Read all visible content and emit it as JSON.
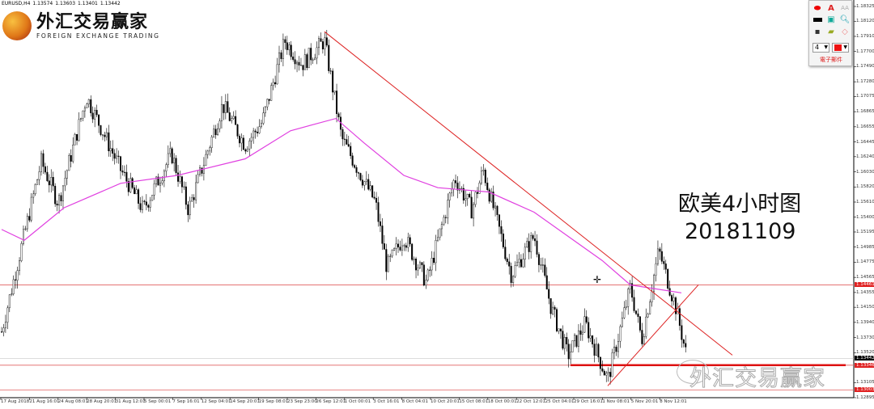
{
  "header": {
    "symbol": "EURUSD,H4",
    "ohlc": [
      "1.13574",
      "1.13603",
      "1.13401",
      "1.13442"
    ]
  },
  "logo": {
    "cn": "外汇交易赢家",
    "en": "FOREIGN EXCHANGE TRADING"
  },
  "toolbox": {
    "line_width": "4",
    "footer": "電子郵件",
    "color": "#ee1111",
    "icons": [
      "ellipse-icon",
      "text-icon",
      "label-icon",
      "rectangle-icon",
      "screenshot-icon",
      "zoom-icon",
      "save-icon",
      "open-folder-icon",
      "eraser-icon"
    ]
  },
  "caption": {
    "line1": "欧美4小时图",
    "line2": "20181109"
  },
  "watermark": "外汇交易赢家",
  "colors": {
    "candles": "#000000",
    "ma": "#e040e0",
    "trendline": "#dd2222",
    "level": "#e06060"
  },
  "chart_data": {
    "type": "candlestick",
    "symbol": "EURUSD",
    "timeframe": "H4",
    "ylim": [
      1.12895,
      1.18325
    ],
    "y_ticks": [
      1.18325,
      1.1812,
      1.1791,
      1.177,
      1.1749,
      1.1728,
      1.17075,
      1.16865,
      1.16655,
      1.16445,
      1.1624,
      1.1603,
      1.1582,
      1.1561,
      1.154,
      1.15195,
      1.14985,
      1.14775,
      1.14565,
      1.14355,
      1.1415,
      1.1394,
      1.1373,
      1.1352,
      1.13105,
      1.12895
    ],
    "highlighted_levels": [
      {
        "value": "1.14461",
        "bg": "#e02020"
      },
      {
        "value": "1.13442",
        "bg": "#000000"
      },
      {
        "value": "1.13346",
        "bg": "#e02020"
      },
      {
        "value": "1.13003",
        "bg": "#e02020"
      }
    ],
    "x_ticks": [
      "17 Aug 2018",
      "21 Aug 16:01",
      "24 Aug 08:01",
      "28 Aug 20:01",
      "31 Aug 12:01",
      "5 Sep 00:01",
      "7 Sep 16:01",
      "12 Sep 04:01",
      "14 Sep 20:01",
      "19 Sep 08:01",
      "23 Sep 23:00",
      "26 Sep 12:01",
      "1 Oct 00:01",
      "3 Oct 16:01",
      "8 Oct 04:01",
      "10 Oct 20:01",
      "15 Oct 08:01",
      "18 Oct 00:01",
      "22 Oct 12:01",
      "25 Oct 04:01",
      "29 Oct 16:01",
      "1 Nov 08:01",
      "5 Nov 20:01",
      "8 Nov 12:01"
    ],
    "price_path": [
      [
        0,
        1.1381
      ],
      [
        4,
        1.1516
      ],
      [
        7,
        1.1617
      ],
      [
        10,
        1.156
      ],
      [
        15,
        1.1707
      ],
      [
        21,
        1.1606
      ],
      [
        25,
        1.155
      ],
      [
        30,
        1.1628
      ],
      [
        33,
        1.155
      ],
      [
        39,
        1.1696
      ],
      [
        43,
        1.164
      ],
      [
        46,
        1.1672
      ],
      [
        50,
        1.1785
      ],
      [
        53,
        1.1752
      ],
      [
        57,
        1.1785
      ],
      [
        60,
        1.165
      ],
      [
        66,
        1.156
      ],
      [
        68,
        1.147
      ],
      [
        71,
        1.1514
      ],
      [
        75,
        1.1449
      ],
      [
        80,
        1.1595
      ],
      [
        83,
        1.155
      ],
      [
        85,
        1.1606
      ],
      [
        90,
        1.146
      ],
      [
        94,
        1.1514
      ],
      [
        97,
        1.1415
      ],
      [
        100,
        1.1348
      ],
      [
        103,
        1.1393
      ],
      [
        107,
        1.1314
      ],
      [
        111,
        1.1443
      ],
      [
        113,
        1.137
      ],
      [
        116,
        1.1494
      ],
      [
        119,
        1.1415
      ],
      [
        121,
        1.1344
      ]
    ],
    "moving_average": [
      [
        0,
        1.1523
      ],
      [
        4,
        1.1508
      ],
      [
        11,
        1.1553
      ],
      [
        21,
        1.1587
      ],
      [
        31,
        1.1598
      ],
      [
        43,
        1.1621
      ],
      [
        51,
        1.166
      ],
      [
        59,
        1.1677
      ],
      [
        64,
        1.1643
      ],
      [
        71,
        1.1598
      ],
      [
        77,
        1.1581
      ],
      [
        86,
        1.1575
      ],
      [
        94,
        1.1547
      ],
      [
        106,
        1.148
      ],
      [
        111,
        1.1446
      ],
      [
        120,
        1.1435
      ]
    ],
    "trendlines": [
      {
        "from": [
          57,
          1.17975
        ],
        "to": [
          129,
          1.13485
        ]
      },
      {
        "from": [
          107,
          1.1306
        ],
        "to": [
          123,
          1.14461
        ]
      }
    ],
    "horizontal_levels": [
      1.14461,
      1.13346,
      1.13003
    ]
  }
}
